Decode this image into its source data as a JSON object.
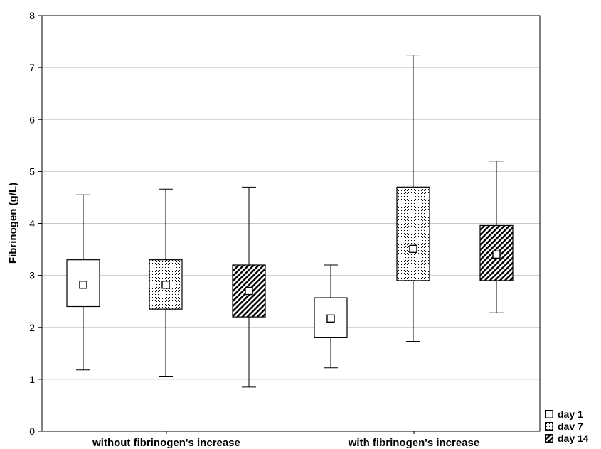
{
  "chart_data": {
    "type": "boxplot",
    "title": "",
    "xlabel": "",
    "ylabel": "Fibrinogen (g/L)",
    "ylim": [
      0,
      8
    ],
    "yticks": [
      "0",
      "1",
      "2",
      "3",
      "4",
      "5",
      "6",
      "7",
      "8"
    ],
    "grid": "horizontal",
    "legend_position": "bottom-right",
    "categories": [
      "without fibrinogen's increase",
      "with fibrinogen's increase"
    ],
    "series": [
      {
        "name": "day 1",
        "pattern": "plain",
        "boxes": [
          {
            "min": 1.18,
            "q1": 2.4,
            "median": 2.82,
            "q3": 3.3,
            "max": 4.55
          },
          {
            "min": 1.22,
            "q1": 1.8,
            "median": 2.17,
            "q3": 2.57,
            "max": 3.2
          }
        ]
      },
      {
        "name": "dav 7",
        "pattern": "dots",
        "boxes": [
          {
            "min": 1.06,
            "q1": 2.35,
            "median": 2.82,
            "q3": 3.3,
            "max": 4.66
          },
          {
            "min": 1.73,
            "q1": 2.9,
            "median": 3.51,
            "q3": 4.7,
            "max": 7.24
          }
        ]
      },
      {
        "name": "day 14",
        "pattern": "hatch",
        "boxes": [
          {
            "min": 0.85,
            "q1": 2.2,
            "median": 2.7,
            "q3": 3.2,
            "max": 4.7
          },
          {
            "min": 2.28,
            "q1": 2.9,
            "median": 3.4,
            "q3": 3.96,
            "max": 5.2
          }
        ]
      }
    ],
    "colors": {
      "line": "#000000",
      "grid": "#c8c8c8",
      "box_fill": "#ffffff",
      "pattern": "#000000"
    }
  }
}
